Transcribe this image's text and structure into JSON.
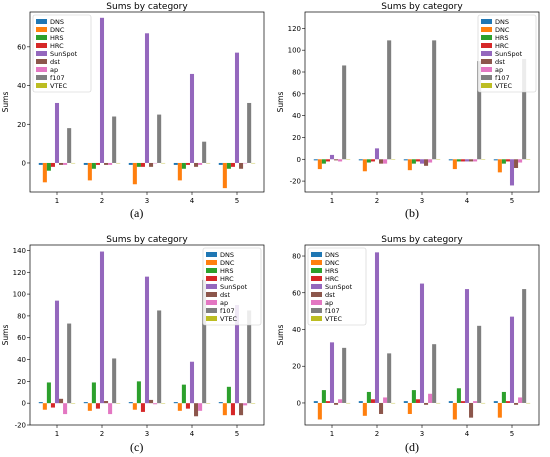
{
  "series_names": [
    "DNS",
    "DNC",
    "HRS",
    "HRC",
    "SunSpot",
    "dst",
    "ap",
    "f107",
    "VTEC"
  ],
  "series_colors": [
    "#1f77b4",
    "#ff7f0e",
    "#2ca02c",
    "#d62728",
    "#9467bd",
    "#8c564b",
    "#e377c2",
    "#7f7f7f",
    "#bcbd22"
  ],
  "chart_data": [
    {
      "type": "bar",
      "panel_label": "(a)",
      "title": "Sums by category",
      "ylabel": "Sums",
      "categories": [
        "1",
        "2",
        "3",
        "4",
        "5"
      ],
      "ylim": [
        -15,
        78
      ],
      "yticks": [
        0,
        20,
        40,
        60
      ],
      "legend": "top-left",
      "series": [
        {
          "name": "DNS",
          "values": [
            -1,
            -1,
            -1,
            -1,
            -1
          ]
        },
        {
          "name": "DNC",
          "values": [
            -10,
            -9,
            -11,
            -9,
            -13
          ]
        },
        {
          "name": "HRS",
          "values": [
            -4,
            -3,
            -2,
            -3,
            -3
          ]
        },
        {
          "name": "HRC",
          "values": [
            -2,
            -1,
            -2,
            -1,
            -2
          ]
        },
        {
          "name": "SunSpot",
          "values": [
            31,
            75,
            67,
            46,
            57
          ]
        },
        {
          "name": "dst",
          "values": [
            -1,
            -1,
            -2,
            -2,
            -3
          ]
        },
        {
          "name": "ap",
          "values": [
            -1,
            -1,
            0,
            -1,
            0
          ]
        },
        {
          "name": "f107",
          "values": [
            18,
            24,
            25,
            11,
            31
          ]
        },
        {
          "name": "VTEC",
          "values": [
            0,
            0,
            0,
            0,
            0
          ]
        }
      ]
    },
    {
      "type": "bar",
      "panel_label": "(b)",
      "title": "Sums by category",
      "ylabel": "Sums",
      "categories": [
        "1",
        "2",
        "3",
        "4",
        "5"
      ],
      "ylim": [
        -30,
        135
      ],
      "yticks": [
        -20,
        0,
        20,
        40,
        60,
        80,
        100,
        120
      ],
      "legend": "top-right",
      "series": [
        {
          "name": "DNS",
          "values": [
            -1,
            -1,
            -1,
            -1,
            -1
          ]
        },
        {
          "name": "DNC",
          "values": [
            -9,
            -11,
            -10,
            -9,
            -12
          ]
        },
        {
          "name": "HRS",
          "values": [
            -4,
            -3,
            -4,
            -2,
            -4
          ]
        },
        {
          "name": "HRC",
          "values": [
            -2,
            -2,
            -2,
            -2,
            -2
          ]
        },
        {
          "name": "SunSpot",
          "values": [
            4,
            10,
            -4,
            -2,
            -24
          ]
        },
        {
          "name": "dst",
          "values": [
            -1,
            -4,
            -6,
            -2,
            -8
          ]
        },
        {
          "name": "ap",
          "values": [
            -2,
            -4,
            -3,
            -2,
            -3
          ]
        },
        {
          "name": "f107",
          "values": [
            86,
            109,
            109,
            90,
            92
          ]
        },
        {
          "name": "VTEC",
          "values": [
            0,
            0,
            0,
            0,
            0
          ]
        }
      ]
    },
    {
      "type": "bar",
      "panel_label": "(c)",
      "title": "Sums by category",
      "ylabel": "Sums",
      "categories": [
        "1",
        "2",
        "3",
        "4",
        "5"
      ],
      "ylim": [
        -20,
        145
      ],
      "yticks": [
        -20,
        0,
        20,
        40,
        60,
        80,
        100,
        120,
        140
      ],
      "legend": "top-right",
      "series": [
        {
          "name": "DNS",
          "values": [
            1,
            1,
            1,
            1,
            1
          ]
        },
        {
          "name": "DNC",
          "values": [
            -6,
            -7,
            -6,
            -7,
            -11
          ]
        },
        {
          "name": "HRS",
          "values": [
            19,
            19,
            20,
            17,
            15
          ]
        },
        {
          "name": "HRC",
          "values": [
            -4,
            -5,
            -8,
            -5,
            -11
          ]
        },
        {
          "name": "SunSpot",
          "values": [
            94,
            139,
            116,
            38,
            90
          ]
        },
        {
          "name": "dst",
          "values": [
            4,
            2,
            3,
            -12,
            -11
          ]
        },
        {
          "name": "ap",
          "values": [
            -10,
            -10,
            -1,
            -7,
            -2
          ]
        },
        {
          "name": "f107",
          "values": [
            73,
            41,
            85,
            113,
            85
          ]
        },
        {
          "name": "VTEC",
          "values": [
            0,
            0,
            0,
            0,
            0
          ]
        }
      ]
    },
    {
      "type": "bar",
      "panel_label": "(d)",
      "title": "Sums by category",
      "ylabel": "Sums",
      "categories": [
        "1",
        "2",
        "3",
        "4",
        "5"
      ],
      "ylim": [
        -12,
        86
      ],
      "yticks": [
        0,
        20,
        40,
        60,
        80
      ],
      "legend": "top-left",
      "series": [
        {
          "name": "DNS",
          "values": [
            1,
            1,
            1,
            1,
            1
          ]
        },
        {
          "name": "DNC",
          "values": [
            -9,
            -7,
            -6,
            -9,
            -8
          ]
        },
        {
          "name": "HRS",
          "values": [
            7,
            6,
            7,
            8,
            6
          ]
        },
        {
          "name": "HRC",
          "values": [
            1,
            2,
            2,
            1,
            1
          ]
        },
        {
          "name": "SunSpot",
          "values": [
            33,
            82,
            65,
            62,
            47
          ]
        },
        {
          "name": "dst",
          "values": [
            -1,
            -6,
            -1,
            -8,
            -1
          ]
        },
        {
          "name": "ap",
          "values": [
            2,
            3,
            5,
            1,
            3
          ]
        },
        {
          "name": "f107",
          "values": [
            30,
            27,
            32,
            42,
            62
          ]
        },
        {
          "name": "VTEC",
          "values": [
            0,
            0,
            0,
            0,
            0
          ]
        }
      ]
    }
  ]
}
